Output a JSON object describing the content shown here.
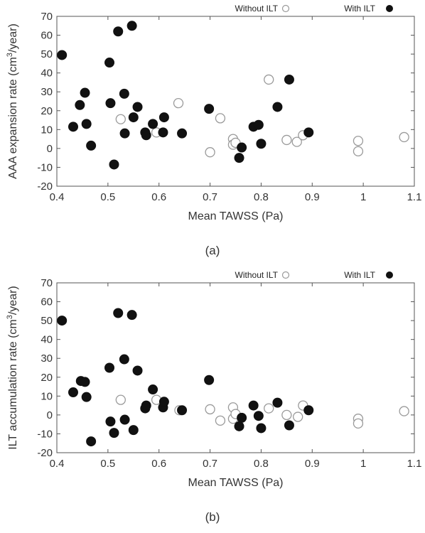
{
  "chart_data": [
    {
      "type": "scatter",
      "caption": "(a)",
      "xlabel": "Mean TAWSS (Pa)",
      "ylabel": "AAA expansion rate (cm³/year)",
      "ylabel_main": "AAA expansion rate (cm",
      "ylabel_sup": "3",
      "ylabel_end": "/year)",
      "xlim": [
        0.4,
        1.1
      ],
      "ylim": [
        -20,
        70
      ],
      "xticks": [
        "0.4",
        "0.5",
        "0.6",
        "0.7",
        "0.8",
        "0.9",
        "1",
        "1.1"
      ],
      "yticks": [
        "-20",
        "-10",
        "0",
        "10",
        "20",
        "30",
        "40",
        "50",
        "60",
        "70"
      ],
      "legend_position": "top",
      "series": [
        {
          "name": "Without ILT",
          "marker": "open-circle",
          "color": "#9a9a9a",
          "points": [
            [
              0.525,
              15.5
            ],
            [
              0.595,
              8.5
            ],
            [
              0.638,
              24
            ],
            [
              0.7,
              -2
            ],
            [
              0.72,
              16
            ],
            [
              0.745,
              5
            ],
            [
              0.745,
              2
            ],
            [
              0.75,
              3
            ],
            [
              0.815,
              36.5
            ],
            [
              0.85,
              4.5
            ],
            [
              0.87,
              3.5
            ],
            [
              0.882,
              7
            ],
            [
              0.99,
              4
            ],
            [
              0.99,
              -1.5
            ],
            [
              1.08,
              6
            ]
          ]
        },
        {
          "name": "With ILT",
          "marker": "filled-circle",
          "color": "#111111",
          "points": [
            [
              0.41,
              49.5
            ],
            [
              0.432,
              11.5
            ],
            [
              0.445,
              23
            ],
            [
              0.455,
              29.5
            ],
            [
              0.458,
              13
            ],
            [
              0.467,
              1.5
            ],
            [
              0.503,
              45.5
            ],
            [
              0.505,
              24
            ],
            [
              0.512,
              -8.5
            ],
            [
              0.52,
              62
            ],
            [
              0.532,
              29
            ],
            [
              0.533,
              8
            ],
            [
              0.547,
              65
            ],
            [
              0.55,
              16.5
            ],
            [
              0.558,
              22
            ],
            [
              0.573,
              8.5
            ],
            [
              0.575,
              7
            ],
            [
              0.588,
              13
            ],
            [
              0.608,
              8.5
            ],
            [
              0.61,
              16.5
            ],
            [
              0.645,
              8
            ],
            [
              0.698,
              21
            ],
            [
              0.757,
              -5
            ],
            [
              0.762,
              0.5
            ],
            [
              0.785,
              11.5
            ],
            [
              0.795,
              12.5
            ],
            [
              0.8,
              2.5
            ],
            [
              0.832,
              22
            ],
            [
              0.855,
              36.5
            ],
            [
              0.893,
              8.5
            ]
          ]
        }
      ]
    },
    {
      "type": "scatter",
      "caption": "(b)",
      "xlabel": "Mean TAWSS (Pa)",
      "ylabel": "ILT accumulation rate (cm³/year)",
      "ylabel_main": "ILT accumulation rate (cm",
      "ylabel_sup": "3",
      "ylabel_end": "/year)",
      "xlim": [
        0.4,
        1.1
      ],
      "ylim": [
        -20,
        70
      ],
      "xticks": [
        "0.4",
        "0.5",
        "0.6",
        "0.7",
        "0.8",
        "0.9",
        "1",
        "1.1"
      ],
      "yticks": [
        "-20",
        "-10",
        "0",
        "10",
        "20",
        "30",
        "40",
        "50",
        "60",
        "70"
      ],
      "legend_position": "top",
      "series": [
        {
          "name": "Without ILT",
          "marker": "open-circle",
          "color": "#9a9a9a",
          "points": [
            [
              0.525,
              8
            ],
            [
              0.595,
              8
            ],
            [
              0.64,
              2.5
            ],
            [
              0.7,
              3
            ],
            [
              0.72,
              -3
            ],
            [
              0.745,
              4
            ],
            [
              0.745,
              -2
            ],
            [
              0.75,
              0.5
            ],
            [
              0.815,
              3.5
            ],
            [
              0.85,
              0
            ],
            [
              0.872,
              -1
            ],
            [
              0.882,
              5
            ],
            [
              0.99,
              -2
            ],
            [
              0.99,
              -4.5
            ],
            [
              1.08,
              2
            ]
          ]
        },
        {
          "name": "With ILT",
          "marker": "filled-circle",
          "color": "#111111",
          "points": [
            [
              0.41,
              50
            ],
            [
              0.432,
              12
            ],
            [
              0.447,
              18
            ],
            [
              0.455,
              17.5
            ],
            [
              0.458,
              9.5
            ],
            [
              0.467,
              -14
            ],
            [
              0.503,
              25
            ],
            [
              0.505,
              -3.5
            ],
            [
              0.512,
              -9.5
            ],
            [
              0.52,
              54
            ],
            [
              0.532,
              29.5
            ],
            [
              0.533,
              -2.5
            ],
            [
              0.547,
              53
            ],
            [
              0.55,
              -8
            ],
            [
              0.558,
              23.5
            ],
            [
              0.573,
              3.5
            ],
            [
              0.575,
              5
            ],
            [
              0.588,
              13.5
            ],
            [
              0.608,
              4
            ],
            [
              0.61,
              7
            ],
            [
              0.645,
              2.5
            ],
            [
              0.698,
              18.5
            ],
            [
              0.757,
              -6
            ],
            [
              0.762,
              -1.5
            ],
            [
              0.785,
              5
            ],
            [
              0.795,
              -0.5
            ],
            [
              0.8,
              -7
            ],
            [
              0.832,
              6.5
            ],
            [
              0.855,
              -5.5
            ],
            [
              0.893,
              2.5
            ]
          ]
        }
      ]
    }
  ]
}
